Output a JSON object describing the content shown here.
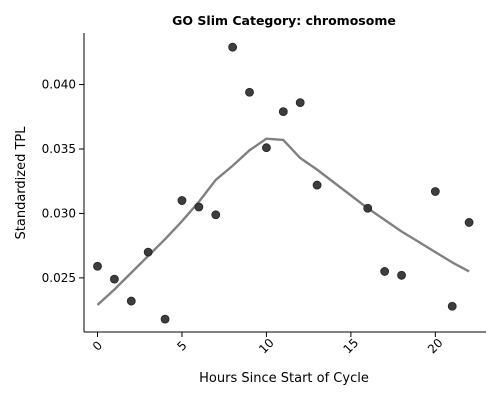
{
  "chart_data": {
    "type": "scatter",
    "title": "GO Slim Category: chromosome",
    "xlabel": "Hours Since Start of Cycle",
    "ylabel": "Standardized TPL",
    "xlim": [
      -0.8,
      23.0
    ],
    "ylim": [
      0.0208,
      0.044
    ],
    "xticks": [
      0,
      5,
      10,
      15,
      20
    ],
    "xtick_labels": [
      "0",
      "5",
      "10",
      "15",
      "20"
    ],
    "yticks": [
      0.025,
      0.03,
      0.035,
      0.04
    ],
    "ytick_labels": [
      "0.025",
      "0.030",
      "0.035",
      "0.040"
    ],
    "grid": false,
    "point_color": "#333333",
    "line_color": "#808080",
    "series": [
      {
        "kind": "points",
        "x": [
          0,
          1,
          2,
          3,
          4,
          5,
          6,
          7,
          8,
          9,
          10,
          11,
          12,
          13,
          16,
          17,
          18,
          20,
          21,
          22
        ],
        "y": [
          0.0259,
          0.0249,
          0.0232,
          0.027,
          0.0218,
          0.031,
          0.0305,
          0.0299,
          0.0429,
          0.0394,
          0.0351,
          0.0379,
          0.0386,
          0.0322,
          0.0304,
          0.0255,
          0.0252,
          0.0317,
          0.0228,
          0.0293
        ]
      },
      {
        "kind": "trend",
        "x": [
          0,
          1,
          2,
          3,
          4,
          5,
          6,
          7,
          8,
          9,
          10,
          11,
          12,
          13,
          14,
          15,
          16,
          17,
          18,
          19,
          20,
          21,
          22
        ],
        "y": [
          0.0229,
          0.0241,
          0.0254,
          0.0267,
          0.028,
          0.0294,
          0.0309,
          0.0326,
          0.0337,
          0.0349,
          0.0358,
          0.0357,
          0.0343,
          0.0334,
          0.0324,
          0.0314,
          0.0304,
          0.0295,
          0.0286,
          0.0278,
          0.027,
          0.0262,
          0.0255
        ]
      }
    ]
  }
}
